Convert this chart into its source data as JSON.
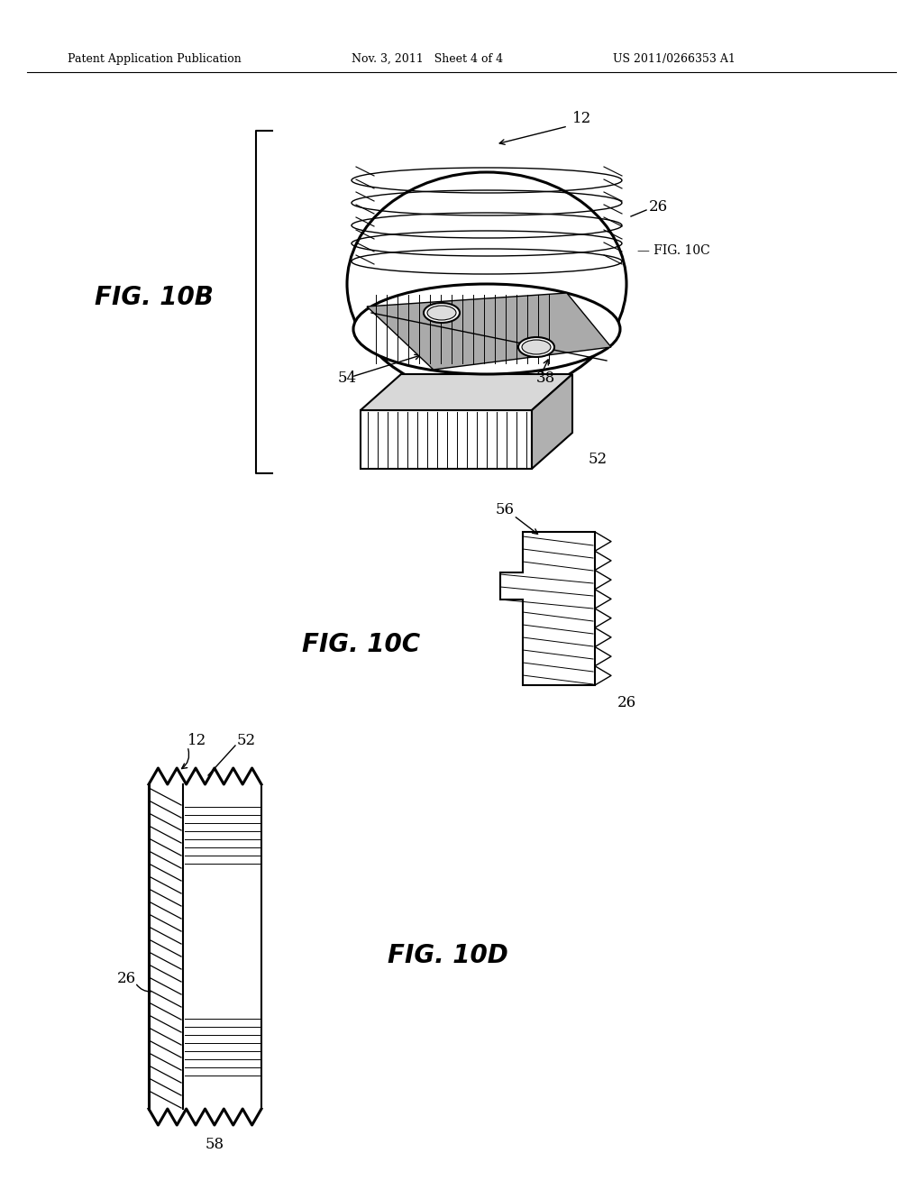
{
  "bg_color": "#ffffff",
  "header_left": "Patent Application Publication",
  "header_mid": "Nov. 3, 2011   Sheet 4 of 4",
  "header_right": "US 2011/0266353 A1",
  "fig10b_label": "FIG. 10B",
  "fig10c_label": "FIG. 10C",
  "fig10d_label": "FIG. 10D"
}
